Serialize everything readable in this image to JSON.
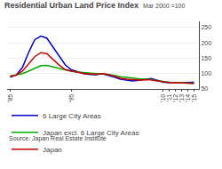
{
  "chart_data": {
    "type": "line",
    "title": "Residential Urban Land Price Index",
    "subtitle": "Mar 2000 =100",
    "source": "Source: Japan Real Estate Institute",
    "x": [
      1985,
      1986,
      1987,
      1988,
      1989,
      1990,
      1991,
      1992,
      1993,
      1994,
      1995,
      1996,
      1997,
      1998,
      1999,
      2000,
      2001,
      2002,
      2003,
      2004,
      2005,
      2006,
      2007,
      2008,
      2009,
      2010,
      2011,
      2012,
      2013,
      2014,
      2015
    ],
    "series": [
      {
        "name": "6 Large City Areas",
        "color": "#0000cc",
        "values": [
          88,
          96,
          120,
          168,
          210,
          222,
          215,
          185,
          155,
          128,
          112,
          105,
          100,
          97,
          96,
          100,
          95,
          88,
          82,
          78,
          76,
          78,
          82,
          84,
          78,
          72,
          70,
          69,
          70,
          71,
          72
        ]
      },
      {
        "name": "Japan excl. 6 Large City Areas",
        "color": "#00aa00",
        "values": [
          92,
          95,
          100,
          108,
          118,
          126,
          127,
          122,
          115,
          110,
          107,
          105,
          103,
          101,
          100,
          100,
          98,
          94,
          90,
          87,
          85,
          83,
          82,
          81,
          77,
          74,
          72,
          71,
          70,
          69,
          68
        ]
      },
      {
        "name": "Japan",
        "color": "#cc0000",
        "values": [
          91,
          95,
          108,
          130,
          155,
          168,
          165,
          146,
          128,
          113,
          108,
          104,
          101,
          99,
          98,
          100,
          97,
          91,
          85,
          82,
          80,
          79,
          80,
          80,
          76,
          73,
          71,
          70,
          69,
          68,
          68
        ]
      }
    ],
    "xlim": [
      1984.5,
      2015.8
    ],
    "xticks": [
      {
        "value": 1985,
        "label": "'85"
      },
      {
        "value": 1995,
        "label": "'95"
      },
      {
        "value": 2010,
        "label": "'10"
      },
      {
        "value": 2011,
        "label": "'11"
      },
      {
        "value": 2012,
        "label": "'12"
      },
      {
        "value": 2013,
        "label": "'13"
      },
      {
        "value": 2014,
        "label": "'14"
      },
      {
        "value": 2015,
        "label": "'15"
      }
    ],
    "ylim": [
      50,
      270
    ],
    "yticks": [
      50,
      100,
      150,
      200,
      250
    ],
    "grid": true,
    "legend": "lower left"
  }
}
